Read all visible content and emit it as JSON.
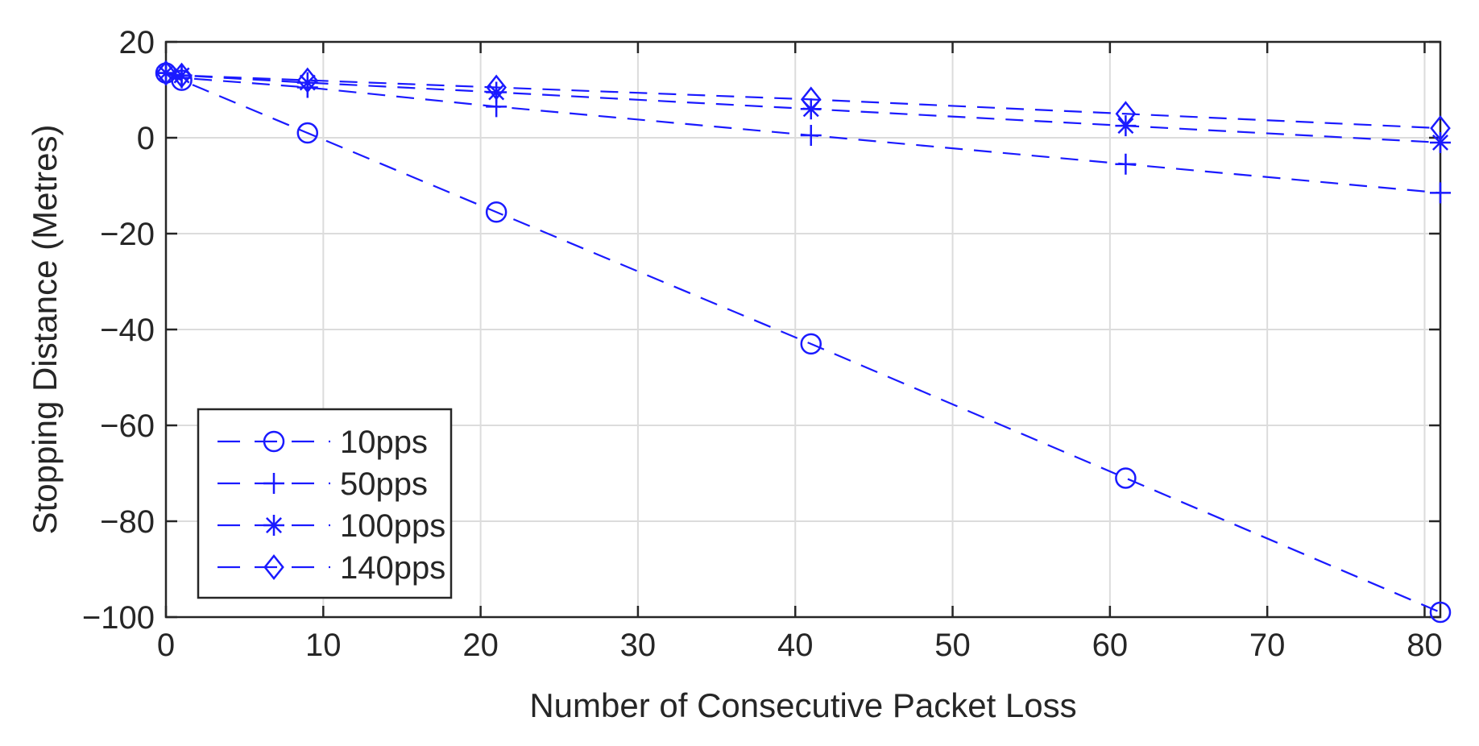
{
  "chart_data": {
    "type": "line",
    "title": "",
    "xlabel": "Number of Consecutive Packet Loss",
    "ylabel": "Stopping Distance (Metres)",
    "xlim": [
      0,
      81
    ],
    "ylim": [
      -100,
      20
    ],
    "xticks": [
      0,
      10,
      20,
      30,
      40,
      50,
      60,
      70,
      80
    ],
    "xtick_labels": [
      "0",
      "10",
      "20",
      "30",
      "40",
      "50",
      "60",
      "70",
      "80"
    ],
    "yticks": [
      20,
      0,
      -20,
      -40,
      -60,
      -80,
      -100
    ],
    "ytick_labels": [
      "20",
      "0",
      "−20",
      "−40",
      "−60",
      "−80",
      "−100"
    ],
    "grid": true,
    "legend_position": "bottom-left",
    "line_color": "#1a1aff",
    "x": [
      0,
      1,
      9,
      21,
      41,
      61,
      81
    ],
    "series": [
      {
        "name": "10pps",
        "marker": "circle",
        "values": [
          13.5,
          12,
          1,
          -15.5,
          -43,
          -71,
          -99
        ]
      },
      {
        "name": "50pps",
        "marker": "plus",
        "values": [
          13.5,
          12.5,
          10.5,
          6.5,
          0.5,
          -5.5,
          -11.5
        ]
      },
      {
        "name": "100pps",
        "marker": "star",
        "values": [
          13.5,
          13,
          11.5,
          9.5,
          6,
          2.5,
          -1
        ]
      },
      {
        "name": "140pps",
        "marker": "diamond",
        "values": [
          13.5,
          13,
          12,
          10.5,
          8,
          5,
          2
        ]
      }
    ]
  }
}
